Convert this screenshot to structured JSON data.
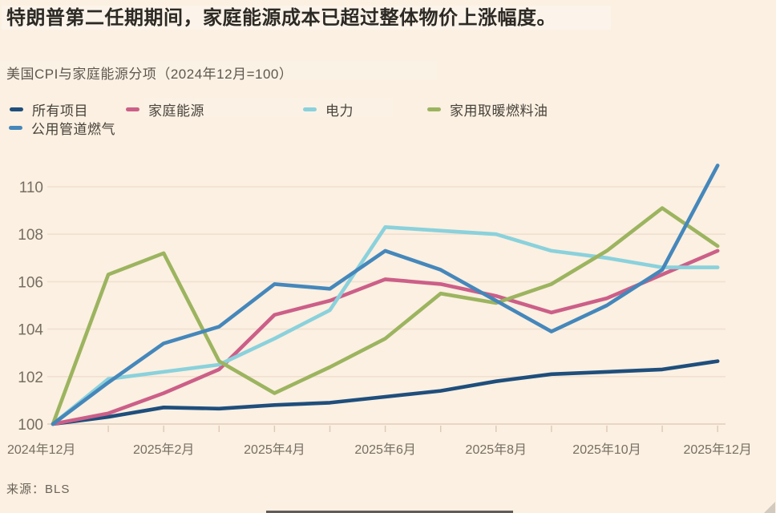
{
  "title": "特朗普第二任期期间，家庭能源成本已超过整体物价上涨幅度。",
  "subtitle": "美国CPI与家庭能源分项（2024年12月=100）",
  "source": "来源：BLS",
  "colors": {
    "background": "#fbf0e1",
    "grid": "#f1e0d1",
    "baseline": "#e2cebd",
    "tick": "#dcc9b8",
    "axis_text": "#776e63"
  },
  "chart_data": {
    "type": "line",
    "title": "美国CPI与家庭能源分项（2024年12月=100）",
    "categories": [
      "2024年12月",
      "2025年1月",
      "2025年2月",
      "2025年3月",
      "2025年4月",
      "2025年5月",
      "2025年6月",
      "2025年7月",
      "2025年8月",
      "2025年9月",
      "2025年10月",
      "2025年11月",
      "2025年12月"
    ],
    "x_tick_labels": [
      "2024年12月",
      "2025年2月",
      "2025年4月",
      "2025年6月",
      "2025年8月",
      "2025年10月",
      "2025年12月"
    ],
    "y_ticks": [
      100,
      102,
      104,
      106,
      108,
      110
    ],
    "ylim": [
      99.6,
      111.2
    ],
    "grid": "horizontal",
    "legend_position": "top",
    "series": [
      {
        "name": "所有项目",
        "color": "#1f4e7c",
        "values": [
          100,
          100.3,
          100.7,
          100.65,
          100.8,
          100.9,
          101.15,
          101.4,
          101.8,
          102.1,
          102.2,
          102.3,
          102.65
        ]
      },
      {
        "name": "家庭能源",
        "color": "#cc5f88",
        "values": [
          100,
          100.45,
          101.3,
          102.3,
          104.6,
          105.2,
          106.1,
          105.9,
          105.4,
          104.7,
          105.3,
          106.3,
          107.3
        ]
      },
      {
        "name": "电力",
        "color": "#8ad1dc",
        "values": [
          100,
          101.9,
          102.2,
          102.5,
          103.6,
          104.8,
          108.3,
          108.15,
          108.0,
          107.3,
          107.0,
          106.6,
          106.6
        ]
      },
      {
        "name": "家用取暖燃料油",
        "color": "#9cb45f",
        "values": [
          100,
          106.3,
          107.2,
          102.65,
          101.3,
          102.4,
          103.6,
          105.5,
          105.1,
          105.9,
          107.3,
          109.1,
          107.5
        ]
      },
      {
        "name": "公用管道燃气",
        "color": "#4587bb",
        "values": [
          100,
          101.75,
          103.4,
          104.1,
          105.9,
          105.7,
          107.3,
          106.5,
          105.2,
          103.9,
          105.0,
          106.5,
          110.9
        ]
      }
    ]
  }
}
